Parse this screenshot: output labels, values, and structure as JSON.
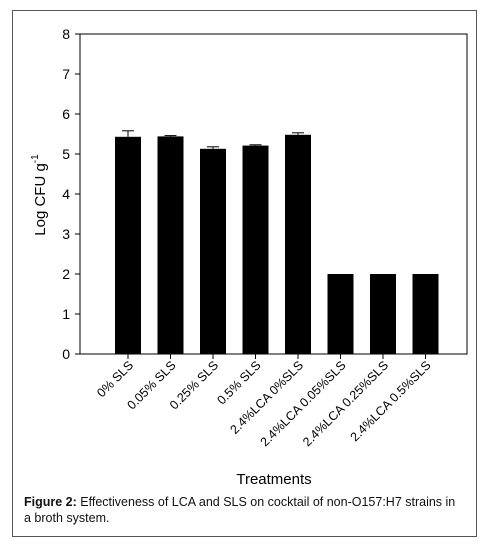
{
  "chart_data": {
    "type": "bar",
    "categories": [
      "0% SLS",
      "0.05% SLS",
      "0.25% SLS",
      "0.5% SLS",
      "2.4%LCA 0%SLS",
      "2.4%LCA 0.05%SLS",
      "2.4%LCA 0.25%SLS",
      "2.4%LCA 0.5%SLS"
    ],
    "values": [
      5.43,
      5.44,
      5.13,
      5.21,
      5.48,
      2.0,
      2.0,
      2.0
    ],
    "error": [
      0.15,
      0.02,
      0.05,
      0.02,
      0.05,
      0,
      0,
      0
    ],
    "xlabel": "Treatments",
    "ylabel_main": "Log CFU g",
    "ylabel_sup": "-1",
    "ylim": [
      0,
      8
    ],
    "yticks": [
      "0",
      "1",
      "2",
      "3",
      "4",
      "5",
      "6",
      "7",
      "8"
    ],
    "grid": false,
    "bar_color": "#000000"
  },
  "caption": {
    "label": "Figure 2:",
    "text": "Effectiveness of LCA and SLS on cocktail of non-O157:H7 strains in a broth system."
  }
}
